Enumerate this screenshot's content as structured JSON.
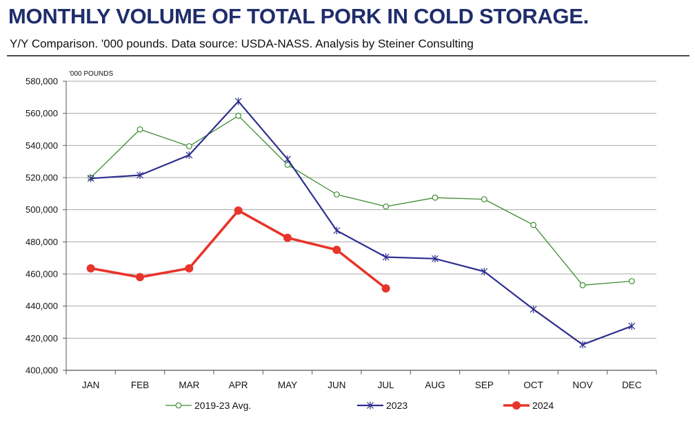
{
  "header": {
    "title": "MONTHLY VOLUME OF TOTAL PORK IN COLD STORAGE.",
    "subtitle": "Y/Y Comparison. '000 pounds.  Data source: USDA-NASS.  Analysis by Steiner Consulting"
  },
  "chart_data": {
    "type": "line",
    "title": "MONTHLY VOLUME OF TOTAL PORK IN COLD STORAGE.",
    "subtitle": "Y/Y Comparison. '000 pounds.  Data source: USDA-NASS.  Analysis by Steiner Consulting",
    "unit_label": "'000 POUNDS",
    "categories": [
      "JAN",
      "FEB",
      "MAR",
      "APR",
      "MAY",
      "JUN",
      "JUL",
      "AUG",
      "SEP",
      "OCT",
      "NOV",
      "DEC"
    ],
    "ylim": [
      400000,
      580000
    ],
    "yticks": [
      400000,
      420000,
      440000,
      460000,
      480000,
      500000,
      520000,
      540000,
      560000,
      580000
    ],
    "ytick_labels": [
      "400,000",
      "420,000",
      "440,000",
      "460,000",
      "480,000",
      "500,000",
      "520,000",
      "540,000",
      "560,000",
      "580,000"
    ],
    "grid": "horizontal",
    "legend_position": "bottom",
    "series": [
      {
        "name": "2019-23 Avg.",
        "color": "#3c8c2f",
        "marker": "open-circle",
        "values": [
          520000,
          550000,
          539500,
          558500,
          528000,
          509500,
          502000,
          507500,
          506500,
          490500,
          453000,
          455500
        ]
      },
      {
        "name": "2023",
        "color": "#2e2e8f",
        "marker": "asterisk",
        "values": [
          519500,
          521500,
          534000,
          567500,
          531500,
          487000,
          470500,
          469500,
          461500,
          438000,
          416000,
          427500
        ]
      },
      {
        "name": "2024",
        "color": "#e8342a",
        "marker": "filled-circle",
        "values": [
          463500,
          458000,
          463500,
          499500,
          482500,
          475000,
          451000,
          null,
          null,
          null,
          null,
          null
        ]
      }
    ]
  }
}
